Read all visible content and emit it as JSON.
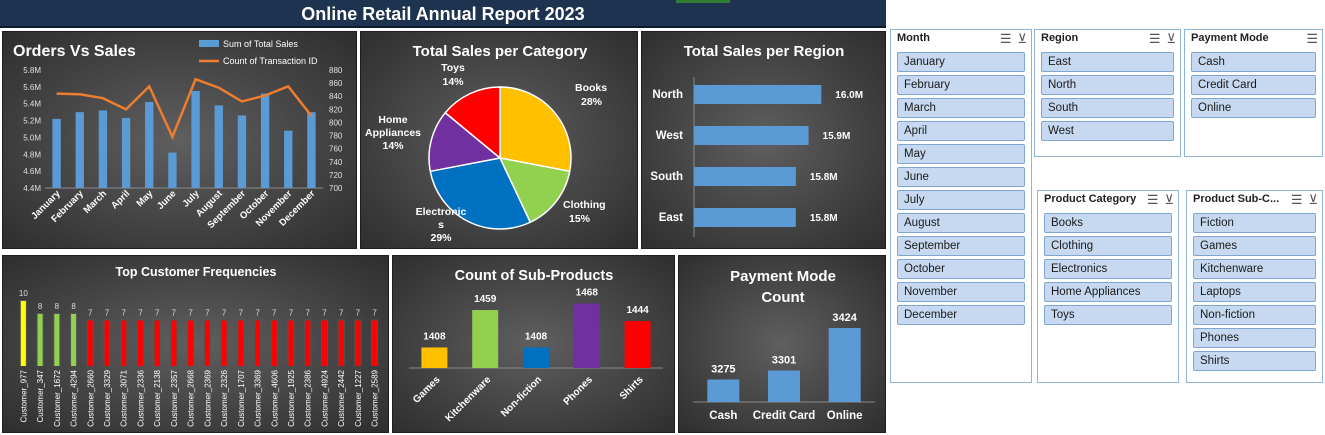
{
  "report_title": "Online Retail Annual Report 2023",
  "slicers": {
    "month": {
      "title": "Month",
      "items": [
        "January",
        "February",
        "March",
        "April",
        "May",
        "June",
        "July",
        "August",
        "September",
        "October",
        "November",
        "December"
      ]
    },
    "region": {
      "title": "Region",
      "items": [
        "East",
        "North",
        "South",
        "West"
      ]
    },
    "payment": {
      "title": "Payment Mode",
      "items": [
        "Cash",
        "Credit Card",
        "Online"
      ]
    },
    "category": {
      "title": "Product Category",
      "items": [
        "Books",
        "Clothing",
        "Electronics",
        "Home Appliances",
        "Toys"
      ]
    },
    "subcat": {
      "title": "Product Sub-C...",
      "items": [
        "Fiction",
        "Games",
        "Kitchenware",
        "Laptops",
        "Non-fiction",
        "Phones",
        "Shirts"
      ]
    }
  },
  "chart_data": [
    {
      "id": "orders_vs_sales",
      "type": "bar",
      "title": "Orders Vs Sales",
      "categories": [
        "January",
        "February",
        "March",
        "April",
        "May",
        "June",
        "July",
        "August",
        "September",
        "October",
        "November",
        "December"
      ],
      "series": [
        {
          "name": "Sum of Total Sales",
          "type": "bar",
          "axis": "left",
          "color": "#5b9bd5",
          "values": [
            5.22,
            5.3,
            5.32,
            5.23,
            5.42,
            4.82,
            5.55,
            5.38,
            5.26,
            5.52,
            5.08,
            5.3
          ]
        },
        {
          "name": "Count of Transaction ID",
          "type": "line",
          "axis": "right",
          "color": "#ed7d31",
          "values": [
            844,
            843,
            837,
            820,
            855,
            778,
            866,
            853,
            832,
            841,
            855,
            810
          ]
        }
      ],
      "y_left": {
        "min": 4.4,
        "max": 5.8,
        "ticks": [
          "4.4M",
          "4.6M",
          "4.8M",
          "5.0M",
          "5.2M",
          "5.4M",
          "5.6M",
          "5.8M"
        ]
      },
      "y_right": {
        "min": 700,
        "max": 880,
        "ticks": [
          "700",
          "720",
          "740",
          "760",
          "780",
          "800",
          "820",
          "840",
          "860",
          "880"
        ]
      },
      "legend": "top-right"
    },
    {
      "id": "sales_per_category",
      "type": "pie",
      "title": "Total Sales per Category",
      "slices": [
        {
          "label": "Books",
          "pct": "28%",
          "value": 28,
          "color": "#ffc000"
        },
        {
          "label": "Clothing",
          "pct": "15%",
          "value": 15,
          "color": "#92d050"
        },
        {
          "label": "Electronics",
          "pct": "29%",
          "value": 29,
          "color": "#0070c0"
        },
        {
          "label": "Home Appliances",
          "pct": "14%",
          "value": 14,
          "color": "#7030a0"
        },
        {
          "label": "Toys",
          "pct": "14%",
          "value": 14,
          "color": "#ff0000"
        }
      ]
    },
    {
      "id": "sales_per_region",
      "type": "bar",
      "title": "Total Sales per Region",
      "orientation": "horizontal",
      "categories": [
        "North",
        "West",
        "South",
        "East"
      ],
      "values": [
        16.0,
        15.9,
        15.8,
        15.8
      ],
      "labels": [
        "16.0M",
        "15.9M",
        "15.8M",
        "15.8M"
      ],
      "color": "#5b9bd5"
    },
    {
      "id": "top_customers",
      "type": "bar",
      "title": "Top Customer Frequencies",
      "categories": [
        "Customer_977",
        "Customer_347",
        "Customer_1672",
        "Customer_4294",
        "Customer_2660",
        "Customer_3329",
        "Customer_3071",
        "Customer_2336",
        "Customer_2138",
        "Customer_2357",
        "Customer_2668",
        "Customer_2369",
        "Customer_2326",
        "Customer_1707",
        "Customer_3369",
        "Customer_4606",
        "Customer_1925",
        "Customer_2386",
        "Customer_4924",
        "Customer_2442",
        "Customer_1227",
        "Customer_2589"
      ],
      "values": [
        10,
        8,
        8,
        8,
        7,
        7,
        7,
        7,
        7,
        7,
        7,
        7,
        7,
        7,
        7,
        7,
        7,
        7,
        7,
        7,
        7,
        7
      ],
      "colors": [
        "#ffff00",
        "#92d050",
        "#92d050",
        "#92d050",
        "#ff0000",
        "#ff0000",
        "#ff0000",
        "#ff0000",
        "#ff0000",
        "#ff0000",
        "#ff0000",
        "#ff0000",
        "#ff0000",
        "#ff0000",
        "#ff0000",
        "#ff0000",
        "#ff0000",
        "#ff0000",
        "#ff0000",
        "#ff0000",
        "#ff0000",
        "#ff0000"
      ],
      "ylim": [
        0,
        10
      ]
    },
    {
      "id": "sub_products",
      "type": "bar",
      "title": "Count of Sub-Products",
      "categories": [
        "Games",
        "Kitchenware",
        "Non-fiction",
        "Phones",
        "Shirts"
      ],
      "values": [
        1408,
        1459,
        1408,
        1468,
        1444
      ],
      "colors": [
        "#ffc000",
        "#92d050",
        "#0070c0",
        "#7030a0",
        "#ff0000"
      ]
    },
    {
      "id": "payment_mode",
      "type": "bar",
      "title": "Payment Mode Count",
      "categories": [
        "Cash",
        "Credit Card",
        "Online"
      ],
      "values": [
        3275,
        3301,
        3424
      ],
      "color": "#5b9bd5"
    }
  ]
}
